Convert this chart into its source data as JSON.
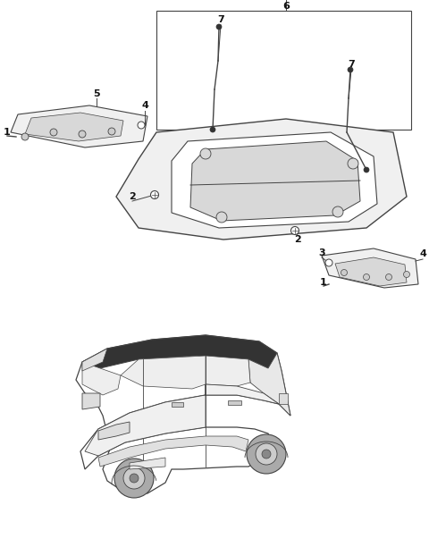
{
  "bg_color": "#ffffff",
  "fig_width": 4.8,
  "fig_height": 6.12,
  "dpi": 100,
  "line_color": "#444444",
  "line_color_light": "#888888",
  "fill_white": "#ffffff",
  "fill_light": "#f0f0f0",
  "fill_medium": "#d8d8d8",
  "fill_dark": "#333333"
}
